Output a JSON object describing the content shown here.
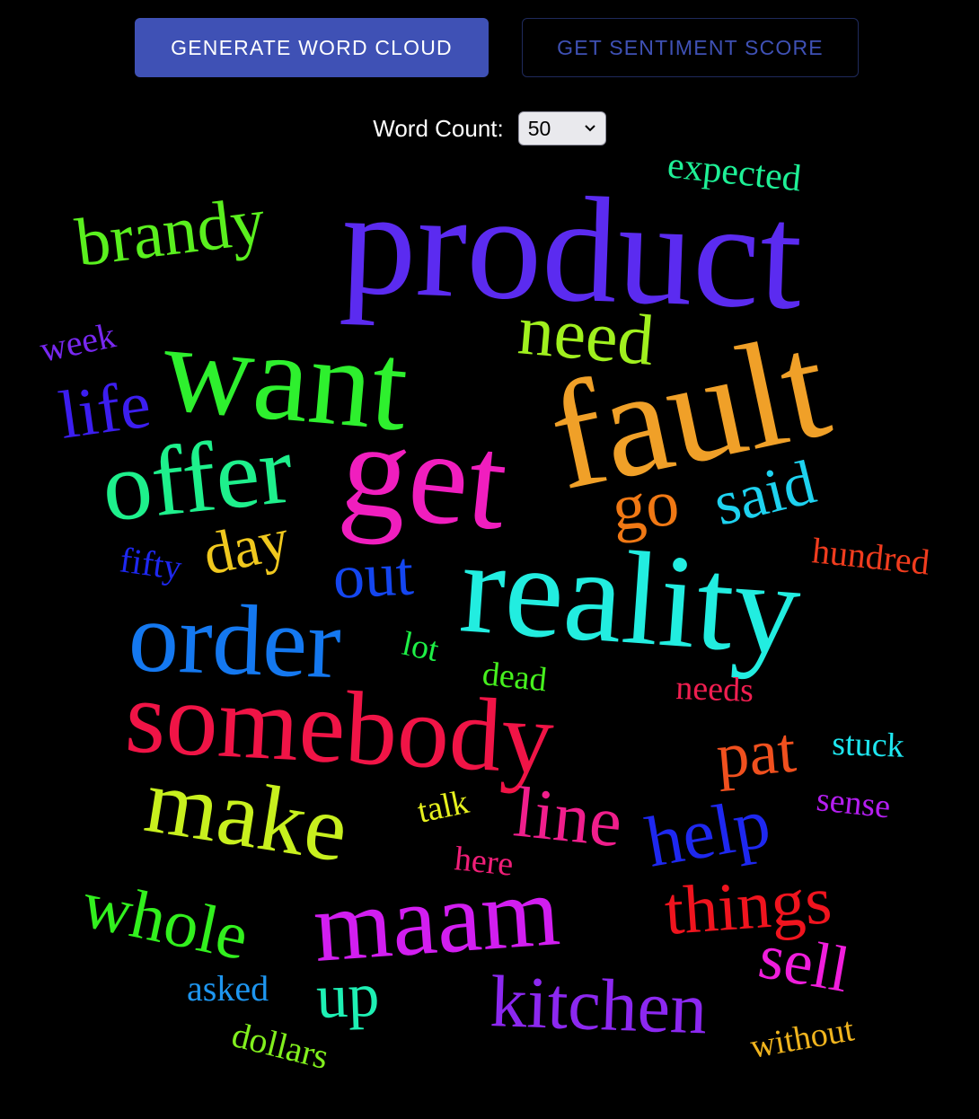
{
  "toolbar": {
    "generate_label": "GENERATE WORD CLOUD",
    "sentiment_label": "GET SENTIMENT SCORE"
  },
  "word_count": {
    "label": "Word Count:",
    "selected": "50"
  },
  "colors": {
    "background": "#000000",
    "primary": "#3f51b5"
  },
  "words": [
    {
      "text": "product",
      "color": "#5b2bf0"
    },
    {
      "text": "fault",
      "color": "#f0a028"
    },
    {
      "text": "want",
      "color": "#2ef02e"
    },
    {
      "text": "get",
      "color": "#f01ebe"
    },
    {
      "text": "reality",
      "color": "#22ede0"
    },
    {
      "text": "somebody",
      "color": "#f01446"
    },
    {
      "text": "offer",
      "color": "#1ef08c"
    },
    {
      "text": "order",
      "color": "#1478f0"
    },
    {
      "text": "make",
      "color": "#c8f01e"
    },
    {
      "text": "maam",
      "color": "#d21ef0"
    },
    {
      "text": "brandy",
      "color": "#5af01e"
    },
    {
      "text": "need",
      "color": "#a0f01e"
    },
    {
      "text": "kitchen",
      "color": "#8c28f0"
    },
    {
      "text": "whole",
      "color": "#32f01e"
    },
    {
      "text": "things",
      "color": "#f0141e"
    },
    {
      "text": "line",
      "color": "#f01e8c"
    },
    {
      "text": "help",
      "color": "#1e28f0"
    },
    {
      "text": "life",
      "color": "#3c1ef0"
    },
    {
      "text": "go",
      "color": "#f07814"
    },
    {
      "text": "said",
      "color": "#1ed2f0"
    },
    {
      "text": "day",
      "color": "#f0c81e"
    },
    {
      "text": "out",
      "color": "#1446f0"
    },
    {
      "text": "pat",
      "color": "#f0501e"
    },
    {
      "text": "sell",
      "color": "#f01edc"
    },
    {
      "text": "up",
      "color": "#1ef0b4"
    },
    {
      "text": "expected",
      "color": "#1ef096"
    },
    {
      "text": "week",
      "color": "#7828f0"
    },
    {
      "text": "fifty",
      "color": "#1e28f0"
    },
    {
      "text": "hundred",
      "color": "#f03c1e"
    },
    {
      "text": "lot",
      "color": "#1ef046"
    },
    {
      "text": "dead",
      "color": "#46f01e"
    },
    {
      "text": "needs",
      "color": "#f01e50"
    },
    {
      "text": "stuck",
      "color": "#1ee6f0"
    },
    {
      "text": "talk",
      "color": "#e6f01e"
    },
    {
      "text": "sense",
      "color": "#b41ef0"
    },
    {
      "text": "here",
      "color": "#f01e78"
    },
    {
      "text": "asked",
      "color": "#1e96f0"
    },
    {
      "text": "dollars",
      "color": "#82f01e"
    },
    {
      "text": "without",
      "color": "#f0b41e"
    }
  ]
}
